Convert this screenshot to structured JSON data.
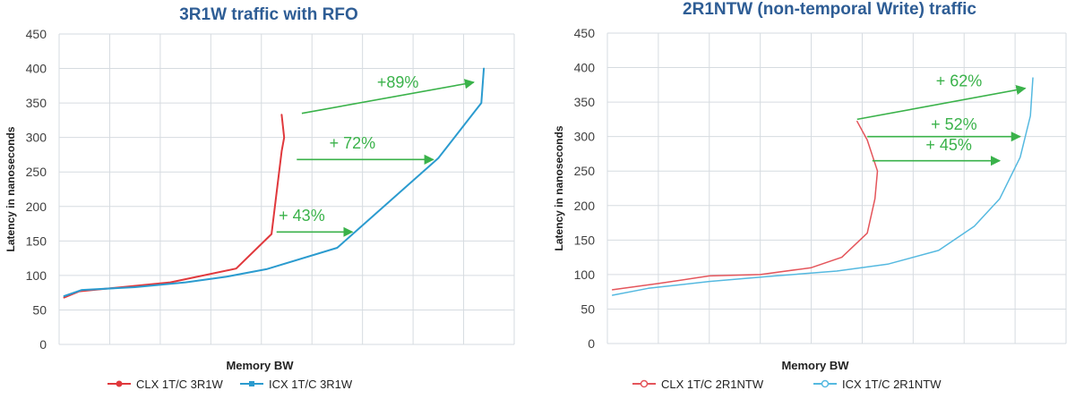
{
  "colors": {
    "title": "#2e5d95",
    "grid": "#d6dbe0",
    "axis_text": "#404040",
    "clx_left": "#e0383c",
    "icx_left": "#2b9bcf",
    "clx_right": "#e4555b",
    "icx_right": "#55b9e0",
    "annotation": "#3ab24a"
  },
  "chart_data": [
    {
      "type": "line",
      "title": "3R1W traffic with RFO",
      "xlabel": "Memory BW",
      "ylabel": "Latency in nanoseconds",
      "ylim": [
        0,
        450
      ],
      "yticks": [
        "0",
        "50",
        "100",
        "150",
        "200",
        "250",
        "300",
        "350",
        "400",
        "450"
      ],
      "xlim": [
        0,
        9
      ],
      "grid": true,
      "legend_position": "bottom",
      "series": [
        {
          "name": "CLX 1T/C 3R1W",
          "color_key": "clx_left",
          "marker": "dot",
          "points": [
            [
              0.1,
              68
            ],
            [
              0.4,
              77
            ],
            [
              2.2,
              90
            ],
            [
              3.5,
              110
            ],
            [
              4.2,
              160
            ],
            [
              4.4,
              280
            ],
            [
              4.45,
              300
            ],
            [
              4.4,
              333
            ]
          ]
        },
        {
          "name": "ICX 1T/C 3R1W",
          "color_key": "icx_left",
          "marker": "square",
          "points": [
            [
              0.1,
              70
            ],
            [
              0.45,
              79
            ],
            [
              1.5,
              83
            ],
            [
              2.5,
              90
            ],
            [
              3.3,
              98
            ],
            [
              4.1,
              109
            ],
            [
              5.5,
              140
            ],
            [
              7.5,
              270
            ],
            [
              8.35,
              350
            ],
            [
              8.4,
              400
            ]
          ]
        }
      ],
      "annotations": [
        {
          "text": "+89%",
          "from": [
            4.8,
            335
          ],
          "to": [
            8.2,
            380
          ],
          "label_at": [
            6.7,
            372
          ]
        },
        {
          "text": "+ 72%",
          "from": [
            4.7,
            268
          ],
          "to": [
            7.4,
            268
          ],
          "label_at": [
            5.8,
            284
          ]
        },
        {
          "text": "+ 43%",
          "from": [
            4.3,
            163
          ],
          "to": [
            5.8,
            163
          ],
          "label_at": [
            4.8,
            179
          ]
        }
      ]
    },
    {
      "type": "line",
      "title": "2R1NTW (non-temporal Write) traffic",
      "xlabel": "Memory BW",
      "ylabel": "Latency in nanoseconds",
      "ylim": [
        0,
        450
      ],
      "yticks": [
        "0",
        "50",
        "100",
        "150",
        "200",
        "250",
        "300",
        "350",
        "400",
        "450"
      ],
      "xlim": [
        0,
        9
      ],
      "grid": true,
      "legend_position": "bottom",
      "series": [
        {
          "name": "CLX 1T/C 2R1NTW",
          "color_key": "clx_right",
          "marker": "dot",
          "points": [
            [
              0.1,
              78
            ],
            [
              1.0,
              87
            ],
            [
              2.0,
              98
            ],
            [
              3.0,
              100
            ],
            [
              4.0,
              110
            ],
            [
              4.6,
              125
            ],
            [
              5.1,
              160
            ],
            [
              5.25,
              210
            ],
            [
              5.3,
              250
            ],
            [
              5.1,
              295
            ],
            [
              4.9,
              322
            ]
          ]
        },
        {
          "name": "ICX 1T/C 2R1NTW",
          "color_key": "icx_right",
          "marker": "dot",
          "points": [
            [
              0.1,
              70
            ],
            [
              0.8,
              80
            ],
            [
              2.0,
              90
            ],
            [
              3.3,
              98
            ],
            [
              4.5,
              105
            ],
            [
              5.5,
              115
            ],
            [
              6.5,
              135
            ],
            [
              7.2,
              170
            ],
            [
              7.7,
              210
            ],
            [
              8.1,
              270
            ],
            [
              8.3,
              330
            ],
            [
              8.35,
              385
            ]
          ]
        }
      ],
      "annotations": [
        {
          "text": "+ 62%",
          "from": [
            4.9,
            325
          ],
          "to": [
            8.2,
            370
          ],
          "label_at": [
            6.9,
            373
          ]
        },
        {
          "text": "+ 52%",
          "from": [
            5.1,
            300
          ],
          "to": [
            8.1,
            300
          ],
          "label_at": [
            6.8,
            310
          ]
        },
        {
          "text": "+ 45%",
          "from": [
            5.2,
            265
          ],
          "to": [
            7.7,
            265
          ],
          "label_at": [
            6.7,
            280
          ]
        }
      ]
    }
  ]
}
